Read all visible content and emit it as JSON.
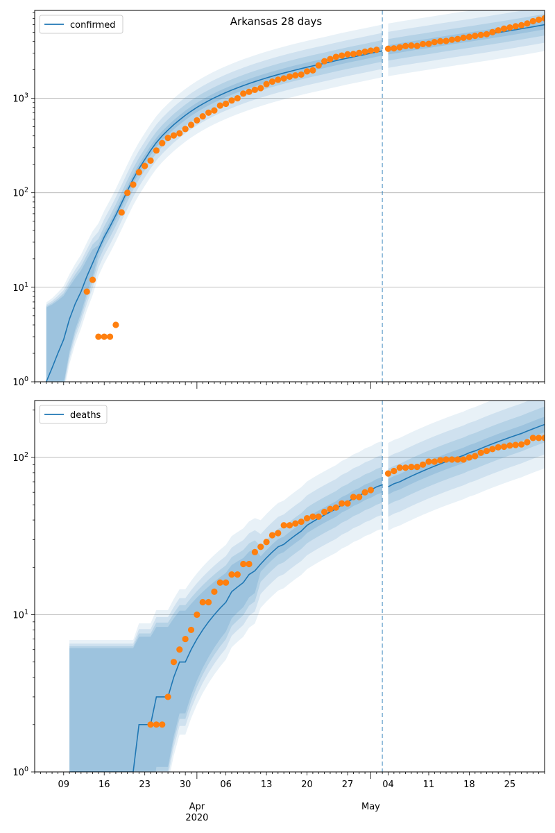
{
  "colors": {
    "model": "#1f77b4",
    "observed": "#ff7f0e",
    "band": "#1f77b4",
    "grid": "#b0b0b0",
    "cutoff": "#1f77b4"
  },
  "chart_data": [
    {
      "type": "line",
      "title": "Arkansas 28 days",
      "legend": "confirmed",
      "legend_position": "top-left",
      "yscale": "log",
      "ylim": [
        1,
        8500
      ],
      "xlim": [
        "2020-03-04",
        "2020-05-31"
      ],
      "cutoff_date": "2020-05-03",
      "grid": "y-major",
      "y_tick_labels": [
        "10^0",
        "10^1",
        "10^2",
        "10^3"
      ],
      "observed": [
        [
          "2020-03-13",
          9
        ],
        [
          "2020-03-14",
          12
        ],
        [
          "2020-03-15",
          3
        ],
        [
          "2020-03-16",
          3
        ],
        [
          "2020-03-17",
          3
        ],
        [
          "2020-03-18",
          4
        ],
        [
          "2020-03-19",
          62
        ],
        [
          "2020-03-20",
          100
        ],
        [
          "2020-03-21",
          122
        ],
        [
          "2020-03-22",
          165
        ],
        [
          "2020-03-23",
          192
        ],
        [
          "2020-03-24",
          219
        ],
        [
          "2020-03-25",
          280
        ],
        [
          "2020-03-26",
          335
        ],
        [
          "2020-03-27",
          381
        ],
        [
          "2020-03-28",
          404
        ],
        [
          "2020-03-29",
          426
        ],
        [
          "2020-03-30",
          473
        ],
        [
          "2020-03-31",
          523
        ],
        [
          "2020-04-01",
          584
        ],
        [
          "2020-04-02",
          643
        ],
        [
          "2020-04-03",
          704
        ],
        [
          "2020-04-04",
          743
        ],
        [
          "2020-04-05",
          837
        ],
        [
          "2020-04-06",
          875
        ],
        [
          "2020-04-07",
          946
        ],
        [
          "2020-04-08",
          1000
        ],
        [
          "2020-04-09",
          1119
        ],
        [
          "2020-04-10",
          1171
        ],
        [
          "2020-04-11",
          1228
        ],
        [
          "2020-04-12",
          1280
        ],
        [
          "2020-04-13",
          1410
        ],
        [
          "2020-04-14",
          1498
        ],
        [
          "2020-04-15",
          1569
        ],
        [
          "2020-04-16",
          1620
        ],
        [
          "2020-04-17",
          1695
        ],
        [
          "2020-04-18",
          1744
        ],
        [
          "2020-04-19",
          1781
        ],
        [
          "2020-04-20",
          1923
        ],
        [
          "2020-04-21",
          1973
        ],
        [
          "2020-04-22",
          2227
        ],
        [
          "2020-04-23",
          2465
        ],
        [
          "2020-04-24",
          2600
        ],
        [
          "2020-04-25",
          2741
        ],
        [
          "2020-04-26",
          2829
        ],
        [
          "2020-04-27",
          2917
        ],
        [
          "2020-04-28",
          2941
        ],
        [
          "2020-04-29",
          3016
        ],
        [
          "2020-04-30",
          3111
        ],
        [
          "2020-05-01",
          3192
        ],
        [
          "2020-05-02",
          3255
        ],
        [
          "2020-05-04",
          3337
        ],
        [
          "2020-05-05",
          3372
        ],
        [
          "2020-05-06",
          3458
        ],
        [
          "2020-05-07",
          3568
        ],
        [
          "2020-05-08",
          3611
        ],
        [
          "2020-05-09",
          3583
        ],
        [
          "2020-05-10",
          3747
        ],
        [
          "2020-05-11",
          3770
        ],
        [
          "2020-05-12",
          3931
        ],
        [
          "2020-05-13",
          4013
        ],
        [
          "2020-05-14",
          4043
        ],
        [
          "2020-05-15",
          4164
        ],
        [
          "2020-05-16",
          4236
        ],
        [
          "2020-05-17",
          4366
        ],
        [
          "2020-05-18",
          4463
        ],
        [
          "2020-05-19",
          4578
        ],
        [
          "2020-05-20",
          4676
        ],
        [
          "2020-05-21",
          4759
        ],
        [
          "2020-05-22",
          5003
        ],
        [
          "2020-05-23",
          5231
        ],
        [
          "2020-05-24",
          5458
        ],
        [
          "2020-05-25",
          5612
        ],
        [
          "2020-05-26",
          5775
        ],
        [
          "2020-05-27",
          5922
        ],
        [
          "2020-05-28",
          6180
        ],
        [
          "2020-05-29",
          6538
        ],
        [
          "2020-05-30",
          6777
        ],
        [
          "2020-05-31",
          7013
        ]
      ],
      "model": [
        [
          "2020-03-06",
          1
        ],
        [
          "2020-03-07",
          1.4
        ],
        [
          "2020-03-08",
          2
        ],
        [
          "2020-03-09",
          2.8
        ],
        [
          "2020-03-10",
          4.6
        ],
        [
          "2020-03-11",
          6.7
        ],
        [
          "2020-03-12",
          9
        ],
        [
          "2020-03-13",
          13
        ],
        [
          "2020-03-14",
          18
        ],
        [
          "2020-03-15",
          25
        ],
        [
          "2020-03-16",
          34
        ],
        [
          "2020-03-17",
          44
        ],
        [
          "2020-03-18",
          58
        ],
        [
          "2020-03-19",
          78
        ],
        [
          "2020-03-20",
          105
        ],
        [
          "2020-03-21",
          140
        ],
        [
          "2020-03-22",
          180
        ],
        [
          "2020-03-23",
          225
        ],
        [
          "2020-03-24",
          280
        ],
        [
          "2020-03-25",
          340
        ],
        [
          "2020-03-26",
          400
        ],
        [
          "2020-03-27",
          460
        ],
        [
          "2020-03-28",
          525
        ],
        [
          "2020-03-29",
          590
        ],
        [
          "2020-03-30",
          660
        ],
        [
          "2020-03-31",
          730
        ],
        [
          "2020-04-01",
          800
        ],
        [
          "2020-04-02",
          870
        ],
        [
          "2020-04-03",
          940
        ],
        [
          "2020-04-04",
          1010
        ],
        [
          "2020-04-05",
          1080
        ],
        [
          "2020-04-06",
          1150
        ],
        [
          "2020-04-07",
          1220
        ],
        [
          "2020-04-08",
          1290
        ],
        [
          "2020-04-09",
          1360
        ],
        [
          "2020-04-10",
          1430
        ],
        [
          "2020-04-11",
          1500
        ],
        [
          "2020-04-12",
          1570
        ],
        [
          "2020-04-13",
          1640
        ],
        [
          "2020-04-14",
          1710
        ],
        [
          "2020-04-15",
          1780
        ],
        [
          "2020-04-16",
          1850
        ],
        [
          "2020-04-17",
          1920
        ],
        [
          "2020-04-18",
          1990
        ],
        [
          "2020-04-19",
          2060
        ],
        [
          "2020-04-20",
          2130
        ],
        [
          "2020-04-21",
          2200
        ],
        [
          "2020-04-22",
          2270
        ],
        [
          "2020-04-23",
          2340
        ],
        [
          "2020-04-24",
          2420
        ],
        [
          "2020-04-25",
          2500
        ],
        [
          "2020-04-26",
          2580
        ],
        [
          "2020-04-27",
          2660
        ],
        [
          "2020-04-28",
          2740
        ],
        [
          "2020-04-29",
          2820
        ],
        [
          "2020-04-30",
          2900
        ],
        [
          "2020-05-01",
          2990
        ],
        [
          "2020-05-02",
          3080
        ],
        [
          "2020-05-03",
          3170
        ],
        [
          "2020-05-04",
          3250
        ],
        [
          "2020-05-05",
          3330
        ],
        [
          "2020-05-06",
          3410
        ],
        [
          "2020-05-07",
          3490
        ],
        [
          "2020-05-08",
          3570
        ],
        [
          "2020-05-09",
          3650
        ],
        [
          "2020-05-10",
          3730
        ],
        [
          "2020-05-11",
          3810
        ],
        [
          "2020-05-12",
          3900
        ],
        [
          "2020-05-13",
          3990
        ],
        [
          "2020-05-14",
          4080
        ],
        [
          "2020-05-15",
          4170
        ],
        [
          "2020-05-16",
          4260
        ],
        [
          "2020-05-17",
          4350
        ],
        [
          "2020-05-18",
          4440
        ],
        [
          "2020-05-19",
          4540
        ],
        [
          "2020-05-20",
          4640
        ],
        [
          "2020-05-21",
          4740
        ],
        [
          "2020-05-22",
          4850
        ],
        [
          "2020-05-23",
          4960
        ],
        [
          "2020-05-24",
          5070
        ],
        [
          "2020-05-25",
          5190
        ],
        [
          "2020-05-26",
          5310
        ],
        [
          "2020-05-27",
          5440
        ],
        [
          "2020-05-28",
          5570
        ],
        [
          "2020-05-29",
          5710
        ],
        [
          "2020-05-30",
          5850
        ],
        [
          "2020-05-31",
          6000
        ]
      ]
    },
    {
      "type": "line",
      "legend": "deaths",
      "legend_position": "top-left",
      "yscale": "log",
      "ylim": [
        1,
        230
      ],
      "xlim": [
        "2020-03-04",
        "2020-05-31"
      ],
      "cutoff_date": "2020-05-03",
      "grid": "y-major",
      "y_tick_labels": [
        "10^0",
        "10^1",
        "10^2"
      ],
      "x_tick_labels": [
        "09",
        "16",
        "23",
        "30",
        "06",
        "13",
        "20",
        "27",
        "04",
        "11",
        "18",
        "25"
      ],
      "x_month_labels": [
        "Apr\n2020",
        "May"
      ],
      "observed": [
        [
          "2020-03-24",
          2
        ],
        [
          "2020-03-25",
          2
        ],
        [
          "2020-03-26",
          2
        ],
        [
          "2020-03-27",
          3
        ],
        [
          "2020-03-28",
          5
        ],
        [
          "2020-03-29",
          6
        ],
        [
          "2020-03-30",
          7
        ],
        [
          "2020-03-31",
          8
        ],
        [
          "2020-04-01",
          10
        ],
        [
          "2020-04-02",
          12
        ],
        [
          "2020-04-03",
          12
        ],
        [
          "2020-04-04",
          14
        ],
        [
          "2020-04-05",
          16
        ],
        [
          "2020-04-06",
          16
        ],
        [
          "2020-04-07",
          18
        ],
        [
          "2020-04-08",
          18
        ],
        [
          "2020-04-09",
          21
        ],
        [
          "2020-04-10",
          21
        ],
        [
          "2020-04-11",
          25
        ],
        [
          "2020-04-12",
          27
        ],
        [
          "2020-04-13",
          29
        ],
        [
          "2020-04-14",
          32
        ],
        [
          "2020-04-15",
          33
        ],
        [
          "2020-04-16",
          37
        ],
        [
          "2020-04-17",
          37
        ],
        [
          "2020-04-18",
          38
        ],
        [
          "2020-04-19",
          39
        ],
        [
          "2020-04-20",
          41
        ],
        [
          "2020-04-21",
          42
        ],
        [
          "2020-04-22",
          42
        ],
        [
          "2020-04-23",
          45
        ],
        [
          "2020-04-24",
          47
        ],
        [
          "2020-04-25",
          48
        ],
        [
          "2020-04-26",
          51
        ],
        [
          "2020-04-27",
          51
        ],
        [
          "2020-04-28",
          56
        ],
        [
          "2020-04-29",
          56
        ],
        [
          "2020-04-30",
          60
        ],
        [
          "2020-05-01",
          62
        ],
        [
          "2020-05-04",
          79
        ],
        [
          "2020-05-05",
          82
        ],
        [
          "2020-05-06",
          86
        ],
        [
          "2020-05-07",
          86
        ],
        [
          "2020-05-08",
          87
        ],
        [
          "2020-05-09",
          87
        ],
        [
          "2020-05-10",
          90
        ],
        [
          "2020-05-11",
          94
        ],
        [
          "2020-05-12",
          94
        ],
        [
          "2020-05-13",
          96
        ],
        [
          "2020-05-14",
          97
        ],
        [
          "2020-05-15",
          97
        ],
        [
          "2020-05-16",
          97
        ],
        [
          "2020-05-17",
          97
        ],
        [
          "2020-05-18",
          100
        ],
        [
          "2020-05-19",
          102
        ],
        [
          "2020-05-20",
          107
        ],
        [
          "2020-05-21",
          110
        ],
        [
          "2020-05-22",
          113
        ],
        [
          "2020-05-23",
          116
        ],
        [
          "2020-05-24",
          117
        ],
        [
          "2020-05-25",
          119
        ],
        [
          "2020-05-26",
          120
        ],
        [
          "2020-05-27",
          121
        ],
        [
          "2020-05-28",
          125
        ],
        [
          "2020-05-29",
          133
        ],
        [
          "2020-05-30",
          133
        ],
        [
          "2020-05-31",
          133
        ]
      ],
      "model": [
        [
          "2020-03-10",
          1
        ],
        [
          "2020-03-21",
          1
        ],
        [
          "2020-03-22",
          2
        ],
        [
          "2020-03-24",
          2
        ],
        [
          "2020-03-25",
          3
        ],
        [
          "2020-03-27",
          3
        ],
        [
          "2020-03-28",
          4
        ],
        [
          "2020-03-29",
          5
        ],
        [
          "2020-03-30",
          5
        ],
        [
          "2020-03-31",
          6
        ],
        [
          "2020-04-01",
          7
        ],
        [
          "2020-04-02",
          8
        ],
        [
          "2020-04-03",
          9
        ],
        [
          "2020-04-04",
          10
        ],
        [
          "2020-04-05",
          11
        ],
        [
          "2020-04-06",
          12
        ],
        [
          "2020-04-07",
          14
        ],
        [
          "2020-04-08",
          15
        ],
        [
          "2020-04-09",
          16
        ],
        [
          "2020-04-10",
          18
        ],
        [
          "2020-04-11",
          19
        ],
        [
          "2020-04-12",
          21
        ],
        [
          "2020-04-13",
          23
        ],
        [
          "2020-04-14",
          25
        ],
        [
          "2020-04-15",
          27
        ],
        [
          "2020-04-16",
          28
        ],
        [
          "2020-04-17",
          30
        ],
        [
          "2020-04-18",
          32
        ],
        [
          "2020-04-19",
          34
        ],
        [
          "2020-04-20",
          37
        ],
        [
          "2020-04-21",
          39
        ],
        [
          "2020-04-22",
          41
        ],
        [
          "2020-04-23",
          43
        ],
        [
          "2020-04-24",
          45
        ],
        [
          "2020-04-25",
          47
        ],
        [
          "2020-04-26",
          50
        ],
        [
          "2020-04-27",
          52
        ],
        [
          "2020-04-28",
          55
        ],
        [
          "2020-04-29",
          57
        ],
        [
          "2020-04-30",
          60
        ],
        [
          "2020-05-01",
          62
        ],
        [
          "2020-05-02",
          65
        ],
        [
          "2020-05-03",
          67
        ],
        [
          "2020-05-04",
          65
        ],
        [
          "2020-05-05",
          68
        ],
        [
          "2020-05-06",
          70
        ],
        [
          "2020-05-07",
          73
        ],
        [
          "2020-05-08",
          76
        ],
        [
          "2020-05-09",
          79
        ],
        [
          "2020-05-10",
          82
        ],
        [
          "2020-05-11",
          85
        ],
        [
          "2020-05-12",
          88
        ],
        [
          "2020-05-13",
          91
        ],
        [
          "2020-05-14",
          94
        ],
        [
          "2020-05-15",
          97
        ],
        [
          "2020-05-16",
          100
        ],
        [
          "2020-05-17",
          103
        ],
        [
          "2020-05-18",
          107
        ],
        [
          "2020-05-19",
          110
        ],
        [
          "2020-05-20",
          114
        ],
        [
          "2020-05-21",
          118
        ],
        [
          "2020-05-22",
          122
        ],
        [
          "2020-05-23",
          126
        ],
        [
          "2020-05-24",
          130
        ],
        [
          "2020-05-25",
          134
        ],
        [
          "2020-05-26",
          138
        ],
        [
          "2020-05-27",
          142
        ],
        [
          "2020-05-28",
          147
        ],
        [
          "2020-05-29",
          152
        ],
        [
          "2020-05-30",
          157
        ],
        [
          "2020-05-31",
          162
        ]
      ]
    }
  ]
}
